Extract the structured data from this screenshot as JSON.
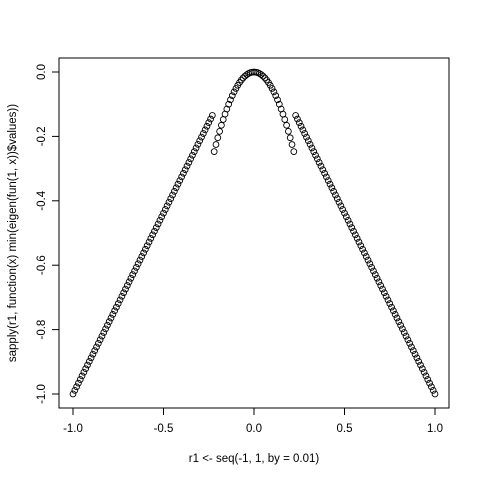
{
  "chart_data": {
    "type": "scatter",
    "title": "",
    "xlabel": "r1 <- seq(-1, 1, by = 0.01)",
    "ylabel": "sapply(r1, function(x) min(eigen(fun(1, x))$values))",
    "xlim": [
      -1.0,
      1.0
    ],
    "ylim": [
      -1.0,
      0.0
    ],
    "x_ticks": [
      -1.0,
      -0.5,
      0.0,
      0.5,
      1.0
    ],
    "x_tick_labels": [
      "-1.0",
      "-0.5",
      "0.0",
      "0.5",
      "1.0"
    ],
    "y_ticks": [
      -1.0,
      -0.8,
      -0.6,
      -0.4,
      -0.2,
      0.0
    ],
    "y_tick_labels": [
      "-1.0",
      "-0.8",
      "-0.6",
      "-0.4",
      "-0.2",
      "0.0"
    ],
    "grid": false,
    "marker": "open-circle",
    "series": [
      {
        "x_seq": {
          "from": -1.0,
          "to": 1.0,
          "by": 0.01
        },
        "x": [
          -1.0,
          -0.9,
          -0.8,
          -0.7,
          -0.6,
          -0.5,
          -0.4,
          -0.3,
          -0.2,
          -0.1,
          0.0,
          0.1,
          0.2,
          0.3,
          0.4,
          0.5,
          0.6,
          0.7,
          0.8,
          0.9,
          1.0
        ],
        "y": [
          -1.0,
          -0.9,
          -0.8,
          -0.7,
          -0.6,
          -0.5,
          -0.4,
          -0.3,
          -0.19,
          -0.06,
          0.0,
          -0.06,
          -0.19,
          -0.3,
          -0.4,
          -0.5,
          -0.6,
          -0.7,
          -0.8,
          -0.9,
          -1.0
        ]
      }
    ]
  }
}
